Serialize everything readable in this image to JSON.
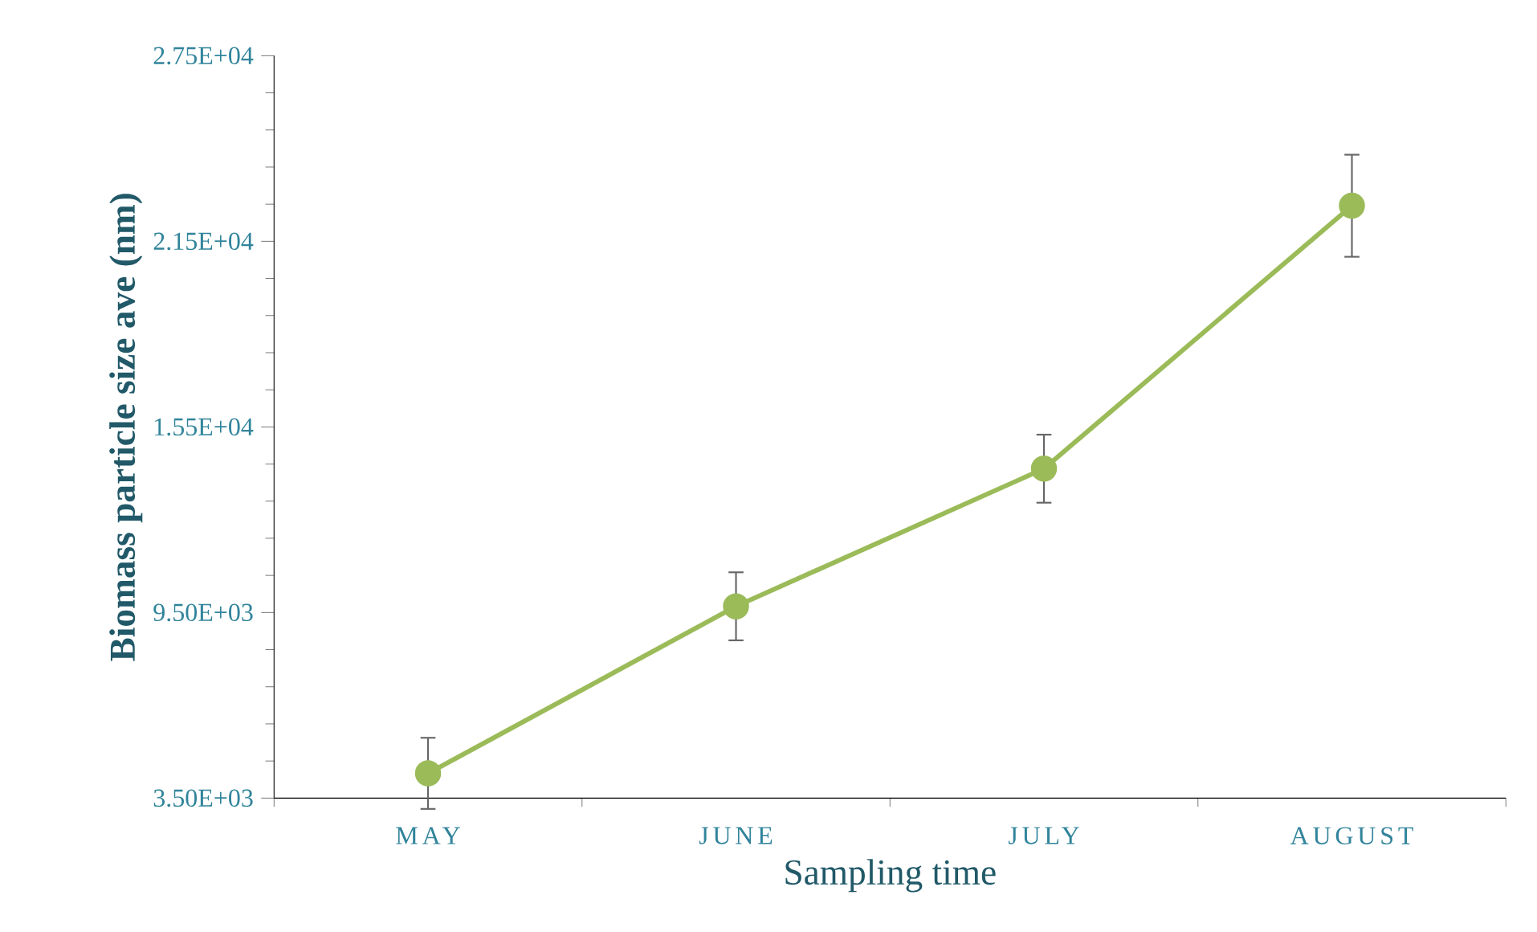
{
  "chart_data": {
    "type": "line",
    "xlabel": "Sampling time",
    "ylabel": "Biomass particle size ave (nm)",
    "categories": [
      "MAY",
      "JUNE",
      "JULY",
      "AUGUST"
    ],
    "series": [
      {
        "color": "#9bbb59",
        "values": [
          4300,
          9700,
          14150,
          22650
        ],
        "errors": [
          1150,
          1100,
          1100,
          1650
        ]
      }
    ],
    "marker": "circle",
    "line_style": "solid",
    "ylim": [
      3500,
      27500
    ],
    "yticks": [
      {
        "value": 3500,
        "label": "3.50E+03"
      },
      {
        "value": 9500,
        "label": "9.50E+03"
      },
      {
        "value": 15500,
        "label": "1.55E+04"
      },
      {
        "value": 21500,
        "label": "2.15E+04"
      },
      {
        "value": 27500,
        "label": "2.75E+04"
      }
    ]
  }
}
